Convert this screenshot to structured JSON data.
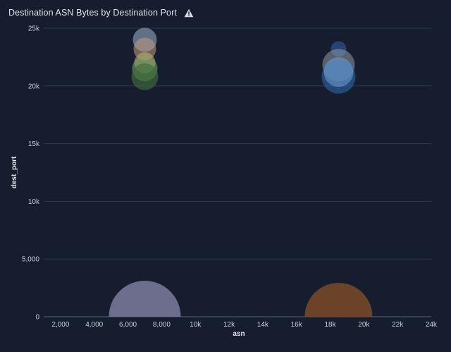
{
  "panel": {
    "title": "Destination ASN Bytes by Destination Port",
    "warning_icon": "warning-triangle-icon"
  },
  "colors": {
    "background": "#161d2e",
    "gridline": "#2d3a52",
    "baseline": "#56627a",
    "tick_text": "#c9ced8"
  },
  "chart_data": {
    "type": "scatter",
    "variant": "bubble",
    "title": "Destination ASN Bytes by Destination Port",
    "xlabel": "asn",
    "ylabel": "dest_port",
    "xlim": [
      1000,
      24000
    ],
    "ylim": [
      0,
      25000
    ],
    "x_ticks": [
      {
        "value": 2000,
        "label": "2,000"
      },
      {
        "value": 4000,
        "label": "4,000"
      },
      {
        "value": 6000,
        "label": "6,000"
      },
      {
        "value": 8000,
        "label": "8,000"
      },
      {
        "value": 10000,
        "label": "10k"
      },
      {
        "value": 12000,
        "label": "12k"
      },
      {
        "value": 14000,
        "label": "14k"
      },
      {
        "value": 16000,
        "label": "16k"
      },
      {
        "value": 18000,
        "label": "18k"
      },
      {
        "value": 20000,
        "label": "20k"
      },
      {
        "value": 22000,
        "label": "22k"
      },
      {
        "value": 24000,
        "label": "24k"
      }
    ],
    "y_ticks": [
      {
        "value": 0,
        "label": "0"
      },
      {
        "value": 5000,
        "label": "5,000"
      },
      {
        "value": 10000,
        "label": "10k"
      },
      {
        "value": 15000,
        "label": "15k"
      },
      {
        "value": 20000,
        "label": "20k"
      },
      {
        "value": 25000,
        "label": "25k"
      }
    ],
    "grid": true,
    "legend": "none",
    "points": [
      {
        "x": 7000,
        "y": 0,
        "size": 51,
        "color": "#7c7b9e",
        "opacity": 0.85
      },
      {
        "x": 18500,
        "y": 0,
        "size": 48,
        "color": "#7a4a28",
        "opacity": 0.85
      },
      {
        "x": 7000,
        "y": 24000,
        "size": 17,
        "color": "#93a8c2",
        "opacity": 0.6
      },
      {
        "x": 7000,
        "y": 23200,
        "size": 16,
        "color": "#c49a7e",
        "opacity": 0.55
      },
      {
        "x": 7000,
        "y": 22000,
        "size": 15,
        "color": "#c7b573",
        "opacity": 0.55
      },
      {
        "x": 7000,
        "y": 21500,
        "size": 18,
        "color": "#7aa86a",
        "opacity": 0.55
      },
      {
        "x": 7000,
        "y": 20800,
        "size": 19,
        "color": "#3f6d3c",
        "opacity": 0.65
      },
      {
        "x": 18500,
        "y": 23200,
        "size": 11,
        "color": "#2d5590",
        "opacity": 0.7
      },
      {
        "x": 18500,
        "y": 21800,
        "size": 23,
        "color": "#8f99a8",
        "opacity": 0.55
      },
      {
        "x": 18500,
        "y": 20800,
        "size": 24,
        "color": "#2d5fa0",
        "opacity": 0.65
      },
      {
        "x": 18500,
        "y": 21200,
        "size": 21,
        "color": "#6b9acb",
        "opacity": 0.6
      }
    ]
  }
}
